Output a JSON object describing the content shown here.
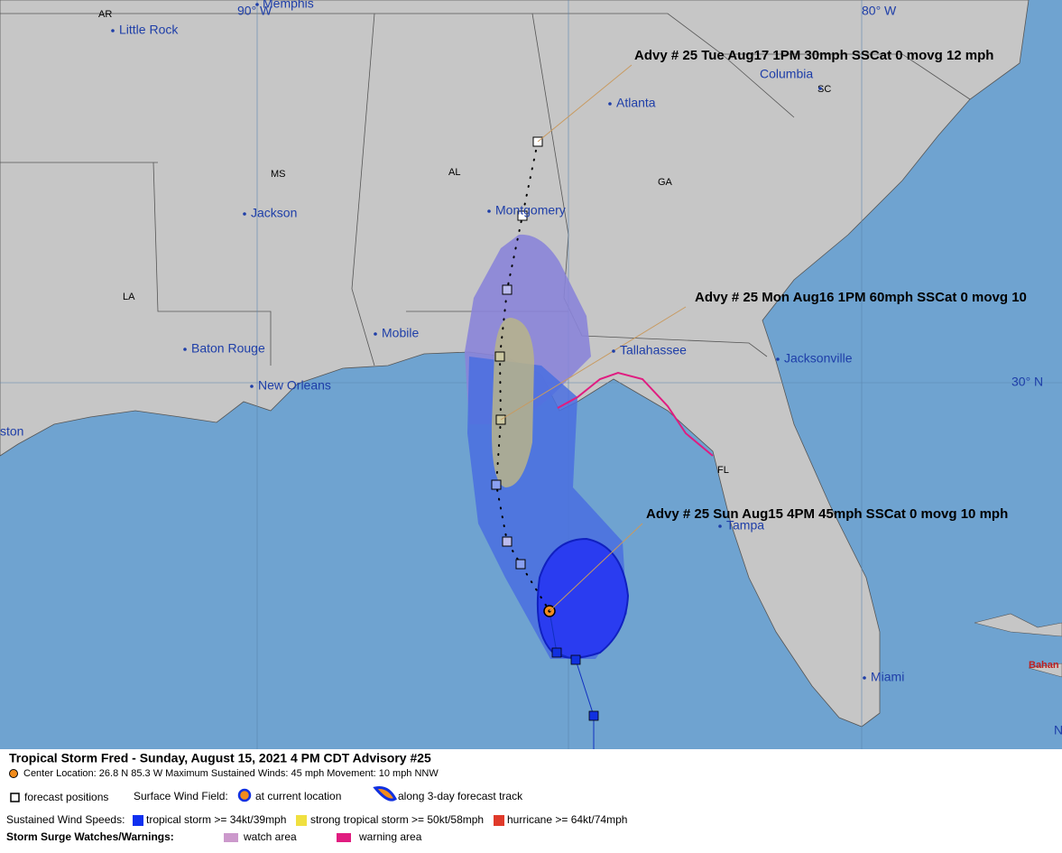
{
  "map": {
    "state_labels": [
      "AR",
      "MS",
      "AL",
      "GA",
      "LA",
      "FL",
      "SC"
    ],
    "cities": [
      "Memphis",
      "Little Rock",
      "Jackson",
      "Montgomery",
      "Atlanta",
      "Columbia",
      "Mobile",
      "Baton Rouge",
      "New Orleans",
      "Tallahassee",
      "Jacksonville",
      "Tampa",
      "Miami",
      "ston",
      "Bahan",
      "N"
    ],
    "graticule_labels": [
      "90° W",
      "80° W",
      "30° N"
    ],
    "advisories": [
      "Advy # 25 Tue Aug17 1PM  30mph SSCat 0 movg 12 mph",
      "Advy # 25 Mon Aug16 1PM  60mph SSCat 0 movg 10",
      "Advy # 25 Sun Aug15 4PM  45mph SSCat 0 movg 10 mph"
    ]
  },
  "legend": {
    "title": "Tropical Storm Fred  -  Sunday, August 15, 2021  4 PM CDT   Advisory #25",
    "details": "Center Location: 26.8 N  85.3 W   Maximum Sustained Winds: 45 mph  Movement: 10 mph NNW",
    "forecast_positions": "forecast positions",
    "wind_field_label": "Surface Wind Field:",
    "at_current": "at current location",
    "along_track": "along 3-day forecast track",
    "speeds_label": "Sustained Wind Speeds:",
    "tropical_storm": "tropical storm >= 34kt/39mph",
    "strong_tropical_storm": "strong tropical storm >= 50kt/58mph",
    "hurricane": "hurricane >= 64kt/74mph",
    "surge_label": "Storm Surge Watches/Warnings:",
    "watch": "watch area",
    "warning": "warning area"
  }
}
